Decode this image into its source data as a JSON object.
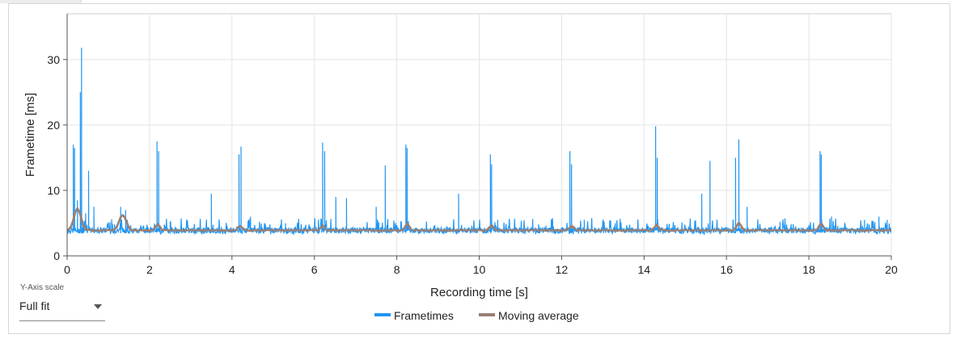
{
  "controls": {
    "y_axis_scale_label": "Y-Axis scale",
    "y_axis_scale_value": "Full fit"
  },
  "chart_data": {
    "type": "line",
    "title": "",
    "xlabel": "Recording time [s]",
    "ylabel": "Frametime [ms]",
    "xlim": [
      0,
      20
    ],
    "ylim": [
      0,
      37
    ],
    "x_ticks": [
      0,
      2,
      4,
      6,
      8,
      10,
      12,
      14,
      16,
      18,
      20
    ],
    "y_ticks": [
      0,
      10,
      20,
      30
    ],
    "grid": true,
    "legend_position": "bottom-center",
    "baseline_frametime_ms": 3.9,
    "series": [
      {
        "name": "Frametimes",
        "color": "#2196f3",
        "spikes": [
          [
            0.15,
            17.0
          ],
          [
            0.18,
            16.5
          ],
          [
            0.25,
            8.5
          ],
          [
            0.32,
            25.0
          ],
          [
            0.35,
            31.8
          ],
          [
            0.45,
            6.5
          ],
          [
            0.52,
            13.0
          ],
          [
            0.65,
            7.5
          ],
          [
            1.08,
            5.2
          ],
          [
            1.3,
            7.5
          ],
          [
            1.42,
            7.0
          ],
          [
            2.18,
            17.5
          ],
          [
            2.22,
            16.0
          ],
          [
            2.5,
            5.2
          ],
          [
            3.5,
            9.5
          ],
          [
            4.17,
            15.5
          ],
          [
            4.22,
            16.7
          ],
          [
            4.45,
            6.0
          ],
          [
            5.3,
            5.0
          ],
          [
            6.2,
            17.3
          ],
          [
            6.25,
            16.0
          ],
          [
            6.52,
            9.0
          ],
          [
            6.78,
            8.8
          ],
          [
            7.5,
            7.5
          ],
          [
            7.72,
            13.8
          ],
          [
            8.22,
            17.0
          ],
          [
            8.25,
            16.5
          ],
          [
            9.5,
            9.5
          ],
          [
            10.27,
            15.5
          ],
          [
            10.3,
            14.0
          ],
          [
            10.45,
            5.5
          ],
          [
            11.3,
            5.0
          ],
          [
            12.2,
            16.0
          ],
          [
            12.24,
            14.0
          ],
          [
            12.55,
            5.5
          ],
          [
            13.3,
            5.0
          ],
          [
            14.28,
            19.8
          ],
          [
            14.32,
            15.0
          ],
          [
            15.4,
            9.5
          ],
          [
            15.6,
            14.5
          ],
          [
            16.22,
            15.0
          ],
          [
            16.3,
            17.8
          ],
          [
            16.5,
            7.5
          ],
          [
            17.3,
            5.2
          ],
          [
            18.27,
            16.0
          ],
          [
            18.3,
            15.5
          ],
          [
            18.55,
            6.0
          ],
          [
            19.35,
            5.5
          ],
          [
            19.7,
            6.0
          ],
          [
            19.9,
            5.5
          ]
        ]
      },
      {
        "name": "Moving average",
        "color": "#998075",
        "bumps": [
          [
            0.25,
            7.2
          ],
          [
            1.35,
            6.3
          ],
          [
            2.2,
            4.8
          ],
          [
            4.2,
            4.6
          ],
          [
            6.2,
            4.6
          ],
          [
            8.25,
            4.9
          ],
          [
            10.3,
            4.6
          ],
          [
            12.25,
            4.6
          ],
          [
            14.3,
            4.7
          ],
          [
            16.3,
            5.1
          ],
          [
            18.3,
            5.0
          ]
        ]
      }
    ]
  }
}
